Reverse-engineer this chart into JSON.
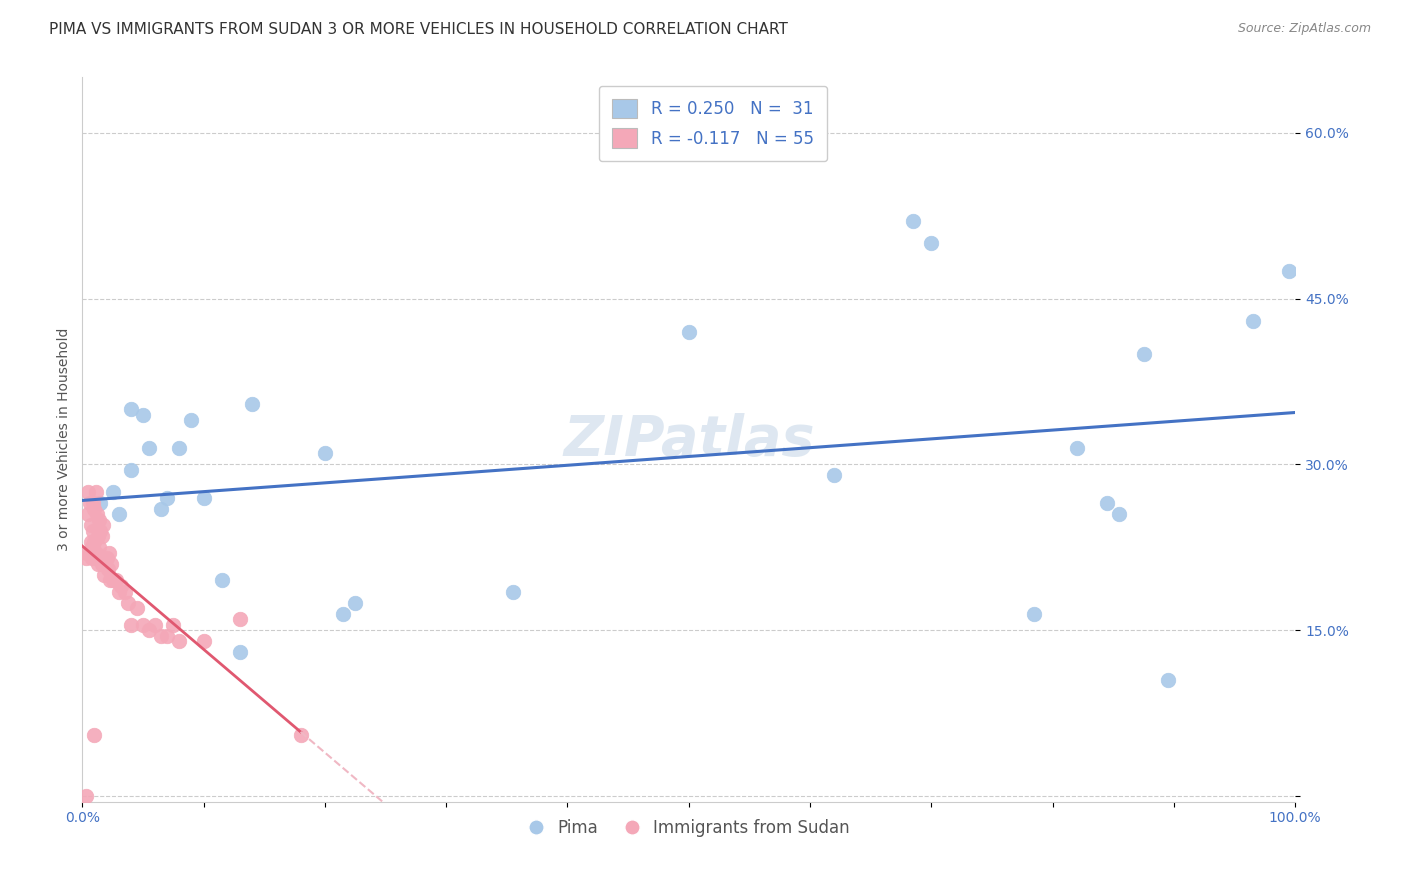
{
  "title": "PIMA VS IMMIGRANTS FROM SUDAN 3 OR MORE VEHICLES IN HOUSEHOLD CORRELATION CHART",
  "source": "Source: ZipAtlas.com",
  "ylabel": "3 or more Vehicles in Household",
  "xlim": [
    0.0,
    1.0
  ],
  "ylim": [
    -0.005,
    0.65
  ],
  "x_ticks": [
    0.0,
    0.1,
    0.2,
    0.3,
    0.4,
    0.5,
    0.6,
    0.7,
    0.8,
    0.9,
    1.0
  ],
  "x_tick_labels": [
    "0.0%",
    "",
    "",
    "",
    "",
    "",
    "",
    "",
    "",
    "",
    "100.0%"
  ],
  "y_ticks": [
    0.0,
    0.15,
    0.3,
    0.45,
    0.6
  ],
  "y_tick_labels_right": [
    "",
    "15.0%",
    "30.0%",
    "45.0%",
    "60.0%"
  ],
  "pima_color": "#a8c8e8",
  "sudan_color": "#f4a8b8",
  "pima_line_color": "#4472c4",
  "sudan_line_color": "#e05870",
  "sudan_line_dashed_color": "#f0b8c4",
  "legend_pima_label": "R = 0.250   N =  31",
  "legend_sudan_label": "R = -0.117   N = 55",
  "legend_bottom_pima": "Pima",
  "legend_bottom_sudan": "Immigrants from Sudan",
  "watermark": "ZIPatlas",
  "pima_x": [
    0.015,
    0.025,
    0.03,
    0.04,
    0.04,
    0.05,
    0.055,
    0.065,
    0.07,
    0.08,
    0.09,
    0.1,
    0.115,
    0.13,
    0.14,
    0.2,
    0.215,
    0.225,
    0.355,
    0.5,
    0.62,
    0.685,
    0.7,
    0.785,
    0.82,
    0.845,
    0.855,
    0.875,
    0.895,
    0.965,
    0.995
  ],
  "pima_y": [
    0.265,
    0.275,
    0.255,
    0.35,
    0.295,
    0.345,
    0.315,
    0.26,
    0.27,
    0.315,
    0.34,
    0.27,
    0.195,
    0.13,
    0.355,
    0.31,
    0.165,
    0.175,
    0.185,
    0.42,
    0.29,
    0.52,
    0.5,
    0.165,
    0.315,
    0.265,
    0.255,
    0.4,
    0.105,
    0.43,
    0.475
  ],
  "sudan_x": [
    0.003,
    0.004,
    0.005,
    0.005,
    0.006,
    0.006,
    0.007,
    0.007,
    0.008,
    0.008,
    0.009,
    0.009,
    0.01,
    0.01,
    0.011,
    0.011,
    0.012,
    0.012,
    0.013,
    0.013,
    0.014,
    0.014,
    0.015,
    0.015,
    0.016,
    0.016,
    0.017,
    0.018,
    0.019,
    0.02,
    0.021,
    0.022,
    0.023,
    0.024,
    0.025,
    0.026,
    0.028,
    0.03,
    0.032,
    0.035,
    0.038,
    0.04,
    0.045,
    0.05,
    0.055,
    0.06,
    0.065,
    0.07,
    0.075,
    0.08,
    0.1,
    0.13,
    0.18,
    0.003,
    0.01
  ],
  "sudan_y": [
    0.215,
    0.22,
    0.255,
    0.275,
    0.265,
    0.22,
    0.245,
    0.23,
    0.225,
    0.215,
    0.24,
    0.265,
    0.26,
    0.23,
    0.275,
    0.22,
    0.255,
    0.215,
    0.235,
    0.21,
    0.25,
    0.225,
    0.215,
    0.24,
    0.235,
    0.21,
    0.245,
    0.2,
    0.21,
    0.215,
    0.205,
    0.22,
    0.195,
    0.21,
    0.195,
    0.195,
    0.195,
    0.185,
    0.19,
    0.185,
    0.175,
    0.155,
    0.17,
    0.155,
    0.15,
    0.155,
    0.145,
    0.145,
    0.155,
    0.14,
    0.14,
    0.16,
    0.055,
    0.0,
    0.055
  ],
  "grid_color": "#cccccc",
  "bg_color": "#ffffff",
  "title_fontsize": 11,
  "axis_label_fontsize": 10,
  "tick_fontsize": 10,
  "watermark_fontsize": 40,
  "watermark_color": "#c8d8e8",
  "watermark_alpha": 0.6
}
